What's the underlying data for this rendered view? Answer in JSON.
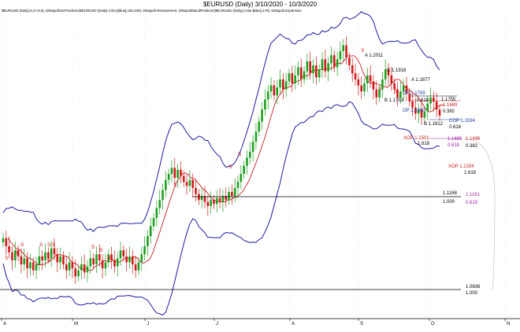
{
  "title": "$EURUSD (Daily) 3/10/2020 - 10/3/2020",
  "indicator_text": "$EURUSD (Daily),8,17,9,5), DiNapoliOscPredictor($EURUSD (Daily),Color,[Blue],130,100), DiNapoli Retracement, DiNapoliMacdPredictor($EURUSD (Daily),Color,[Blue],179), DiNapoli Expansion",
  "colors": {
    "candle_up": "#1e9e1e",
    "candle_down": "#d01818",
    "band": "#1c1ca0",
    "predictor": "#c42020",
    "fib_black": "#000000",
    "fib_red": "#c42020",
    "fib_blue": "#1c3ca0",
    "fib_purple": "#a020a0",
    "axis": "#000000"
  },
  "chart_data": {
    "type": "candlestick",
    "title": "$EURUSD (Daily) 3/10/2020 - 10/3/2020",
    "x_range": [
      "2020-03-10",
      "2020-10-03"
    ],
    "month_ticks": [
      "A",
      "M",
      "J",
      "J",
      "A",
      "S",
      "O",
      "N"
    ],
    "y_range": [
      1.062,
      1.215
    ],
    "grid": true,
    "annotations": [
      {
        "text": "A 1.2011",
        "series": "black"
      },
      {
        "text": "C 1.1916",
        "series": "black"
      },
      {
        "text": "A 1.1877",
        "series": "black"
      },
      {
        "text": "B 1.1753",
        "series": "black"
      },
      {
        "text": "OP 1.1759",
        "series": "blue"
      },
      {
        "text": "0.618",
        "series": "black"
      },
      {
        "text": "OP 1.1690",
        "series": "blue"
      },
      {
        "text": "1.1755",
        "series": "black"
      },
      {
        "text": "1.1689",
        "series": "red"
      },
      {
        "text": "0.382",
        "series": "black"
      },
      {
        "text": "B 1.1612",
        "series": "black"
      },
      {
        "text": "COP 1.1594",
        "series": "blue"
      },
      {
        "text": "0.618",
        "series": "black"
      },
      {
        "text": "XOP 1.1501",
        "series": "red"
      },
      {
        "text": "1.618",
        "series": "black"
      },
      {
        "text": "1.1488",
        "series": "purple"
      },
      {
        "text": "0.618",
        "series": "purple"
      },
      {
        "text": "1.1496",
        "series": "red"
      },
      {
        "text": "0.382",
        "series": "black"
      },
      {
        "text": "XOP 1.1334",
        "series": "red"
      },
      {
        "text": "1.618",
        "series": "black"
      },
      {
        "text": "1.1168",
        "series": "black"
      },
      {
        "text": "1.000",
        "series": "black"
      },
      {
        "text": "1.1161",
        "series": "purple"
      },
      {
        "text": "0.618",
        "series": "purple"
      },
      {
        "text": "1.0836",
        "series": "black"
      },
      {
        "text": "1.000",
        "series": "black"
      }
    ],
    "levels": [
      {
        "value": 1.1168,
        "label": "1.1168"
      },
      {
        "value": 1.0836,
        "label": "1.0836"
      }
    ],
    "swing_marks": [
      "S",
      "S",
      "S",
      "S",
      "S",
      "S",
      "S",
      "B",
      "S",
      "B",
      "S",
      "S",
      "S",
      "S",
      "S",
      "S"
    ],
    "price_path": [
      1.102,
      1.098,
      1.095,
      1.091,
      1.096,
      1.093,
      1.089,
      1.092,
      1.087,
      1.09,
      1.086,
      1.089,
      1.093,
      1.091,
      1.095,
      1.092,
      1.097,
      1.094,
      1.09,
      1.093,
      1.089,
      1.086,
      1.09,
      1.087,
      1.083,
      1.086,
      1.089,
      1.085,
      1.088,
      1.092,
      1.089,
      1.094,
      1.091,
      1.087,
      1.09,
      1.094,
      1.091,
      1.088,
      1.092,
      1.096,
      1.093,
      1.09,
      1.093,
      1.089,
      1.086,
      1.09,
      1.094,
      1.098,
      1.103,
      1.108,
      1.112,
      1.117,
      1.121,
      1.126,
      1.131,
      1.134,
      1.137,
      1.132,
      1.136,
      1.133,
      1.13,
      1.128,
      1.131,
      1.127,
      1.124,
      1.121,
      1.123,
      1.12,
      1.118,
      1.121,
      1.119,
      1.122,
      1.12,
      1.123,
      1.121,
      1.125,
      1.123,
      1.127,
      1.13,
      1.134,
      1.138,
      1.142,
      1.145,
      1.15,
      1.155,
      1.16,
      1.166,
      1.171,
      1.175,
      1.178,
      1.173,
      1.177,
      1.181,
      1.176,
      1.18,
      1.184,
      1.179,
      1.183,
      1.187,
      1.181,
      1.185,
      1.19,
      1.184,
      1.188,
      1.182,
      1.186,
      1.191,
      1.185,
      1.189,
      1.193,
      1.187,
      1.191,
      1.195,
      1.198,
      1.192,
      1.188,
      1.184,
      1.181,
      1.178,
      1.175,
      1.179,
      1.183,
      1.18,
      1.176,
      1.172,
      1.176,
      1.181,
      1.186,
      1.183,
      1.179,
      1.176,
      1.172,
      1.175,
      1.178,
      1.174,
      1.17,
      1.167,
      1.164,
      1.166,
      1.162,
      1.165,
      1.169,
      1.172,
      1.17,
      1.166,
      1.163
    ]
  }
}
